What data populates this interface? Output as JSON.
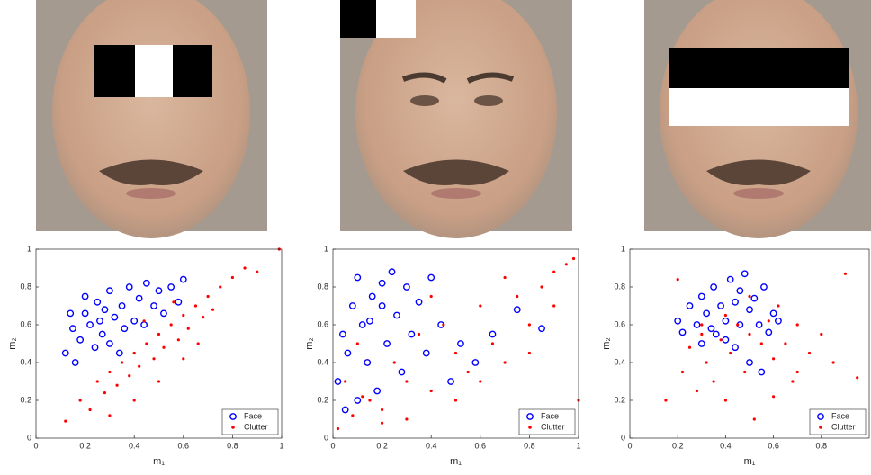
{
  "chart_data": [
    {
      "type": "scatter",
      "xlabel": "m₁",
      "ylabel": "m₂",
      "xlim": [
        0,
        1
      ],
      "ylim": [
        0,
        1
      ],
      "xticks": [
        0,
        0.2,
        0.4,
        0.6,
        0.8,
        1
      ],
      "yticks": [
        0,
        0.2,
        0.4,
        0.6,
        0.8,
        1
      ],
      "legend": "lower right",
      "series": [
        {
          "name": "Face",
          "color": "#0000ff",
          "marker": "circle",
          "x": [
            0.12,
            0.15,
            0.18,
            0.2,
            0.22,
            0.25,
            0.27,
            0.3,
            0.32,
            0.35,
            0.38,
            0.4,
            0.42,
            0.45,
            0.48,
            0.5,
            0.52,
            0.55,
            0.58,
            0.6,
            0.16,
            0.24,
            0.3,
            0.36,
            0.44,
            0.2,
            0.28,
            0.34,
            0.14,
            0.26
          ],
          "values": [
            0.45,
            0.58,
            0.52,
            0.66,
            0.6,
            0.72,
            0.55,
            0.78,
            0.64,
            0.7,
            0.8,
            0.62,
            0.74,
            0.82,
            0.7,
            0.78,
            0.66,
            0.8,
            0.72,
            0.84,
            0.4,
            0.48,
            0.5,
            0.58,
            0.6,
            0.75,
            0.68,
            0.45,
            0.66,
            0.62
          ]
        },
        {
          "name": "Clutter",
          "color": "#ff0000",
          "marker": "dot",
          "x": [
            0.12,
            0.18,
            0.22,
            0.25,
            0.28,
            0.3,
            0.33,
            0.35,
            0.38,
            0.4,
            0.42,
            0.45,
            0.48,
            0.5,
            0.52,
            0.55,
            0.58,
            0.6,
            0.62,
            0.65,
            0.68,
            0.7,
            0.72,
            0.75,
            0.8,
            0.85,
            0.9,
            0.99,
            0.3,
            0.4,
            0.5,
            0.6,
            0.44,
            0.56,
            0.66
          ],
          "values": [
            0.09,
            0.2,
            0.15,
            0.3,
            0.24,
            0.35,
            0.28,
            0.4,
            0.33,
            0.45,
            0.38,
            0.5,
            0.42,
            0.55,
            0.48,
            0.6,
            0.52,
            0.65,
            0.58,
            0.7,
            0.64,
            0.75,
            0.68,
            0.8,
            0.85,
            0.9,
            0.88,
            1,
            0.12,
            0.2,
            0.3,
            0.42,
            0.62,
            0.72,
            0.5
          ]
        }
      ]
    },
    {
      "type": "scatter",
      "xlabel": "m₁",
      "ylabel": "m₂",
      "xlim": [
        0,
        1
      ],
      "ylim": [
        0,
        1
      ],
      "xticks": [
        0,
        0.2,
        0.4,
        0.6,
        0.8,
        1
      ],
      "yticks": [
        0,
        0.2,
        0.4,
        0.6,
        0.8,
        1
      ],
      "legend": "lower right",
      "series": [
        {
          "name": "Face",
          "color": "#0000ff",
          "marker": "circle",
          "x": [
            0.02,
            0.04,
            0.06,
            0.08,
            0.1,
            0.12,
            0.14,
            0.16,
            0.18,
            0.2,
            0.22,
            0.24,
            0.26,
            0.28,
            0.3,
            0.32,
            0.35,
            0.38,
            0.4,
            0.44,
            0.48,
            0.52,
            0.58,
            0.65,
            0.75,
            0.85,
            0.05,
            0.1,
            0.15,
            0.2
          ],
          "values": [
            0.3,
            0.55,
            0.45,
            0.7,
            0.85,
            0.6,
            0.4,
            0.75,
            0.25,
            0.82,
            0.5,
            0.88,
            0.65,
            0.35,
            0.8,
            0.55,
            0.72,
            0.45,
            0.85,
            0.6,
            0.3,
            0.5,
            0.4,
            0.55,
            0.68,
            0.58,
            0.15,
            0.2,
            0.62,
            0.7
          ]
        },
        {
          "name": "Clutter",
          "color": "#ff0000",
          "marker": "dot",
          "x": [
            0.02,
            0.05,
            0.08,
            0.1,
            0.15,
            0.2,
            0.25,
            0.3,
            0.35,
            0.4,
            0.45,
            0.5,
            0.55,
            0.6,
            0.65,
            0.7,
            0.75,
            0.8,
            0.85,
            0.9,
            0.95,
            0.98,
            1,
            0.3,
            0.5,
            0.7,
            0.9,
            0.6,
            0.4,
            0.2,
            0.8,
            0.12
          ],
          "values": [
            0.05,
            0.3,
            0.12,
            0.5,
            0.2,
            0.15,
            0.4,
            0.3,
            0.55,
            0.25,
            0.6,
            0.45,
            0.35,
            0.7,
            0.5,
            0.4,
            0.75,
            0.6,
            0.8,
            0.88,
            0.92,
            0.95,
            0.2,
            0.1,
            0.2,
            0.85,
            0.7,
            0.3,
            0.75,
            0.08,
            0.45,
            0.22
          ]
        }
      ]
    },
    {
      "type": "scatter",
      "xlabel": "m₁",
      "ylabel": "m₂",
      "xlim": [
        0,
        1
      ],
      "ylim": [
        0,
        1
      ],
      "xticks": [
        0,
        0.2,
        0.4,
        0.6,
        0.8
      ],
      "yticks": [
        0,
        0.2,
        0.4,
        0.6,
        0.8,
        1
      ],
      "legend": "lower right",
      "series": [
        {
          "name": "Face",
          "color": "#0000ff",
          "marker": "circle",
          "x": [
            0.2,
            0.22,
            0.25,
            0.28,
            0.3,
            0.32,
            0.35,
            0.38,
            0.4,
            0.42,
            0.44,
            0.46,
            0.48,
            0.5,
            0.52,
            0.54,
            0.56,
            0.58,
            0.6,
            0.62,
            0.3,
            0.36,
            0.44,
            0.5,
            0.4,
            0.34,
            0.46,
            0.55
          ],
          "values": [
            0.62,
            0.56,
            0.7,
            0.6,
            0.75,
            0.66,
            0.8,
            0.7,
            0.62,
            0.84,
            0.72,
            0.78,
            0.87,
            0.68,
            0.74,
            0.6,
            0.8,
            0.56,
            0.66,
            0.62,
            0.5,
            0.55,
            0.48,
            0.4,
            0.52,
            0.58,
            0.6,
            0.35
          ]
        },
        {
          "name": "Clutter",
          "color": "#ff0000",
          "marker": "dot",
          "x": [
            0.15,
            0.2,
            0.22,
            0.25,
            0.28,
            0.3,
            0.32,
            0.35,
            0.38,
            0.4,
            0.42,
            0.45,
            0.48,
            0.5,
            0.52,
            0.55,
            0.58,
            0.6,
            0.62,
            0.65,
            0.68,
            0.7,
            0.75,
            0.8,
            0.85,
            0.9,
            0.95,
            0.5,
            0.6,
            0.4,
            0.3,
            0.7
          ],
          "values": [
            0.2,
            0.84,
            0.35,
            0.48,
            0.25,
            0.55,
            0.4,
            0.3,
            0.52,
            0.2,
            0.45,
            0.6,
            0.35,
            0.55,
            0.1,
            0.5,
            0.62,
            0.42,
            0.7,
            0.5,
            0.3,
            0.6,
            0.45,
            0.55,
            0.4,
            0.87,
            0.32,
            0.75,
            0.22,
            0.65,
            0.6,
            0.35
          ]
        }
      ]
    }
  ]
}
